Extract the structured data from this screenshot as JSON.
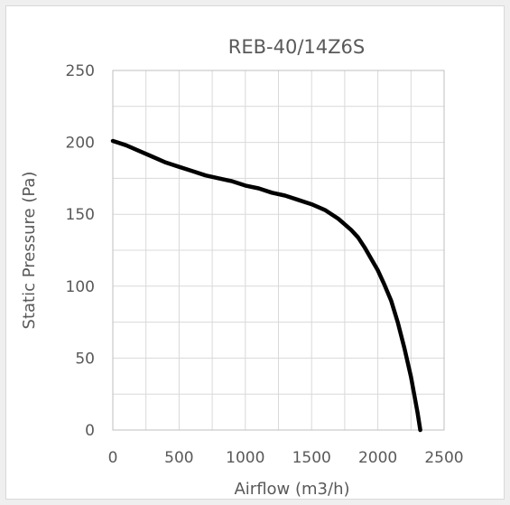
{
  "chart_data": {
    "type": "line",
    "title": "REB-40/14Z6S",
    "xlabel": "Airflow (m3/h)",
    "ylabel": "Static Pressure (Pa)",
    "xlim": [
      0,
      2500
    ],
    "ylim": [
      0,
      250
    ],
    "x_ticks": [
      0,
      500,
      1000,
      1500,
      2000,
      2500
    ],
    "y_ticks": [
      0,
      50,
      100,
      150,
      200,
      250
    ],
    "x_tick_labels": [
      "0",
      "500",
      "1000",
      "1500",
      "2000",
      "2500"
    ],
    "y_tick_labels": [
      "0",
      "50",
      "100",
      "150",
      "200",
      "250"
    ],
    "grid": true,
    "minor_x_step": 250,
    "minor_y_step": 25,
    "series": [
      {
        "color": "#000000",
        "x": [
          0,
          100,
          200,
          300,
          400,
          500,
          600,
          700,
          800,
          900,
          1000,
          1100,
          1200,
          1300,
          1400,
          1500,
          1600,
          1700,
          1750,
          1800,
          1850,
          1900,
          1950,
          2000,
          2050,
          2100,
          2150,
          2200,
          2250,
          2300,
          2320
        ],
        "y": [
          201,
          198,
          194,
          190,
          186,
          183,
          180,
          177,
          175,
          173,
          170,
          168,
          165,
          163,
          160,
          157,
          153,
          147,
          143,
          139,
          134,
          127,
          119,
          111,
          101,
          90,
          75,
          57,
          37,
          12,
          0
        ]
      }
    ]
  }
}
